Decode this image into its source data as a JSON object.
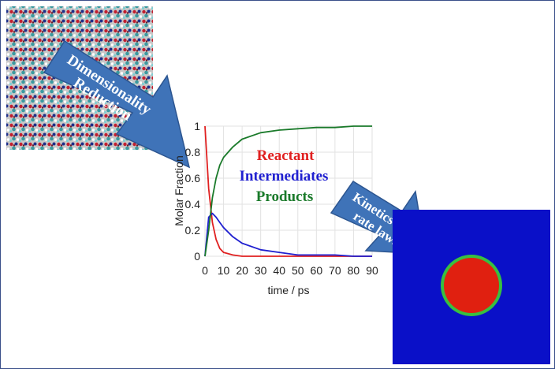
{
  "arrows": {
    "reduction": {
      "line1": "Dimensionality",
      "line2": "Reduction"
    },
    "kinetics": {
      "line1": "Kinetics",
      "line2": "rate laws"
    }
  },
  "colors": {
    "reactant": "#e02020",
    "intermediates": "#2020d0",
    "products": "#1a7a2a",
    "arrow_fill": "#3f73b8",
    "field_bg": "#0a10c8",
    "droplet": "#e02010",
    "droplet_rim": "#38c040"
  },
  "chart_data": {
    "type": "line",
    "xlabel": "time / ps",
    "ylabel": "Molar Fraction",
    "xlim": [
      0,
      90
    ],
    "ylim": [
      0,
      1
    ],
    "xticks": [
      "0",
      "10",
      "20",
      "30",
      "40",
      "50",
      "60",
      "70",
      "80",
      "90"
    ],
    "yticks": [
      "0",
      "0.2",
      "0.4",
      "0.6",
      "0.8",
      "1"
    ],
    "legend": [
      "Reactant",
      "Intermediates",
      "Products"
    ],
    "x": [
      0,
      2,
      4,
      6,
      8,
      10,
      15,
      20,
      30,
      40,
      50,
      60,
      70,
      80,
      90
    ],
    "series": [
      {
        "name": "Reactant",
        "values": [
          1.0,
          0.52,
          0.26,
          0.13,
          0.06,
          0.03,
          0.01,
          0.0,
          0.0,
          0.0,
          0.0,
          0.0,
          0.0,
          0.0,
          0.0
        ]
      },
      {
        "name": "Intermediates",
        "values": [
          0.0,
          0.3,
          0.33,
          0.3,
          0.26,
          0.22,
          0.15,
          0.1,
          0.05,
          0.03,
          0.01,
          0.01,
          0.01,
          0.0,
          0.0
        ]
      },
      {
        "name": "Products",
        "values": [
          0.0,
          0.2,
          0.45,
          0.6,
          0.7,
          0.76,
          0.84,
          0.9,
          0.95,
          0.97,
          0.98,
          0.99,
          0.99,
          1.0,
          1.0
        ]
      }
    ]
  }
}
